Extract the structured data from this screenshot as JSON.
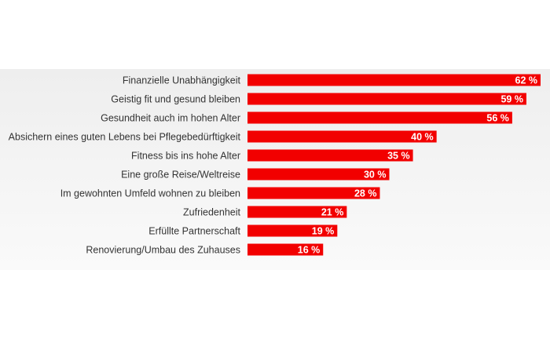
{
  "chart_data": {
    "type": "bar",
    "orientation": "horizontal",
    "color": "#f20000",
    "categories": [
      "Finanzielle Unabhängigkeit",
      "Geistig fit und gesund bleiben",
      "Gesundheit auch im hohen Alter",
      "Absichern eines guten Lebens bei Pflegebedürftigkeit",
      "Fitness bis ins hohe Alter",
      "Eine große Reise/Weltreise",
      "Im gewohnten Umfeld wohnen zu bleiben",
      "Zufriedenheit",
      "Erfüllte Partnerschaft",
      "Renovierung/Umbau des Zuhauses"
    ],
    "values": [
      62,
      59,
      56,
      40,
      35,
      30,
      28,
      21,
      19,
      16
    ],
    "value_labels": [
      "62 %",
      "59 %",
      "56 %",
      "40 %",
      "35 %",
      "30 %",
      "28 %",
      "21 %",
      "19 %",
      "16 %"
    ]
  }
}
